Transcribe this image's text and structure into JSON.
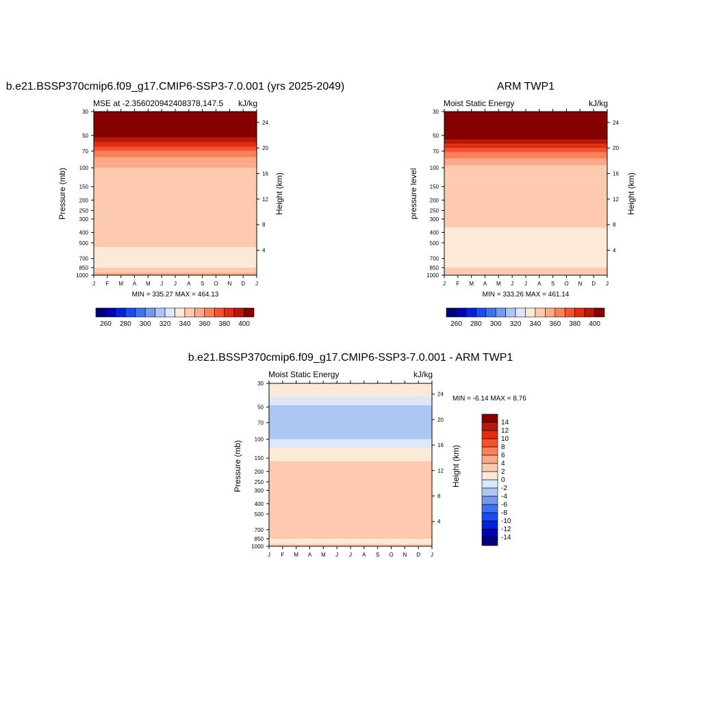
{
  "chart_data": [
    {
      "type": "heatmap",
      "title": "b.e21.BSSP370cmip6.f09_g17.CMIP6-SSP3-7.0.001 (yrs 2025-2049)",
      "left_string": "MSE at -2.356020942408378,147.5",
      "right_string": "kJ/kg",
      "ylabel": "Pressure (mb)",
      "ylabel_right": "Height (km)",
      "x_ticks": [
        "J",
        "F",
        "M",
        "A",
        "M",
        "J",
        "J",
        "A",
        "S",
        "O",
        "N",
        "D",
        "J"
      ],
      "y_ticks": [
        30,
        50,
        70,
        100,
        150,
        200,
        250,
        300,
        400,
        500,
        700,
        850,
        1000
      ],
      "height_ticks": [
        24,
        20,
        16,
        12,
        8,
        4
      ],
      "min_max_text": "MIN = 335.27  MAX = 464.13",
      "contour_levels": [
        250,
        260,
        270,
        280,
        290,
        300,
        310,
        320,
        330,
        340,
        350,
        360,
        370,
        380,
        390,
        400,
        410
      ],
      "colorbar_labels": [
        "260",
        "280",
        "300",
        "320",
        "340",
        "360",
        "380",
        "400"
      ],
      "colorbar_colors": [
        "#00007f",
        "#0000b4",
        "#0022dc",
        "#1a4cf5",
        "#3d72f2",
        "#7499ee",
        "#adc7f4",
        "#dce8fa",
        "#fde9d7",
        "#fdcab0",
        "#fca987",
        "#f98059",
        "#f5532f",
        "#e12d0f",
        "#b91808",
        "#860000"
      ],
      "stripes_pressure_boundaries": [
        30,
        52,
        58,
        64,
        70,
        80,
        92,
        100,
        150,
        550,
        850,
        950,
        1000
      ],
      "stripes_colors": [
        "#860000",
        "#b91808",
        "#e12d0f",
        "#f5532f",
        "#f98059",
        "#fca987",
        "#fca987",
        "#fdcab0",
        "#fdcab0",
        "#fde9d7",
        "#fdcab0",
        "#fca987"
      ]
    },
    {
      "type": "heatmap",
      "title": "ARM TWP1",
      "left_string": "Moist Static Energy",
      "right_string": "kJ/kg",
      "ylabel": "pressure level",
      "ylabel_right": "Height (km)",
      "x_ticks": [
        "J",
        "F",
        "M",
        "A",
        "M",
        "J",
        "J",
        "A",
        "S",
        "O",
        "N",
        "D",
        "J"
      ],
      "y_ticks": [
        30,
        50,
        70,
        100,
        150,
        200,
        250,
        300,
        400,
        500,
        700,
        850,
        1000
      ],
      "height_ticks": [
        24,
        20,
        16,
        12,
        8,
        4
      ],
      "min_max_text": "MIN = 333.26  MAX = 461.14",
      "colorbar_labels": [
        "260",
        "280",
        "300",
        "320",
        "340",
        "360",
        "380",
        "400"
      ],
      "colorbar_colors": [
        "#00007f",
        "#0000b4",
        "#0022dc",
        "#1a4cf5",
        "#3d72f2",
        "#7499ee",
        "#adc7f4",
        "#dce8fa",
        "#fde9d7",
        "#fdcab0",
        "#fca987",
        "#f98059",
        "#f5532f",
        "#e12d0f",
        "#b91808",
        "#860000"
      ],
      "stripes_pressure_boundaries": [
        30,
        55,
        60,
        66,
        72,
        82,
        95,
        130,
        360,
        850,
        1000
      ],
      "stripes_colors": [
        "#860000",
        "#b91808",
        "#e12d0f",
        "#f5532f",
        "#f98059",
        "#fca987",
        "#fdcab0",
        "#fdcab0",
        "#fde9d7",
        "#fdcab0"
      ]
    },
    {
      "type": "heatmap",
      "title": "b.e21.BSSP370cmip6.f09_g17.CMIP6-SSP3-7.0.001 - ARM TWP1",
      "left_string": "Moist Static Energy",
      "right_string": "kJ/kg",
      "ylabel": "Pressure (mb)",
      "ylabel_right": "Height (km)",
      "x_ticks": [
        "J",
        "F",
        "M",
        "A",
        "M",
        "J",
        "J",
        "A",
        "S",
        "O",
        "N",
        "D",
        "J"
      ],
      "y_ticks": [
        30,
        50,
        70,
        100,
        150,
        200,
        250,
        300,
        400,
        500,
        700,
        850,
        1000
      ],
      "height_ticks": [
        24,
        20,
        16,
        12,
        8,
        4
      ],
      "min_max_text": "MIN =  -6.14 MAX =   8.76",
      "colorbar_labels": [
        "14",
        "12",
        "10",
        "8",
        "6",
        "4",
        "2",
        "0",
        "-2",
        "-4",
        "-6",
        "-8",
        "-10",
        "-12",
        "-14"
      ],
      "colorbar_colors": [
        "#860000",
        "#b91808",
        "#e12d0f",
        "#f5532f",
        "#f98059",
        "#fca987",
        "#fdcab0",
        "#fde9d7",
        "#dce8fa",
        "#adc7f4",
        "#7499ee",
        "#3d72f2",
        "#1a4cf5",
        "#0022dc",
        "#0000b4",
        "#00007f"
      ],
      "stripes_pressure_boundaries": [
        30,
        40,
        48,
        100,
        120,
        160,
        850,
        950,
        1000
      ],
      "stripes_colors": [
        "#fde9d7",
        "#dce8fa",
        "#adc7f4",
        "#dce8fa",
        "#fde9d7",
        "#fdcab0",
        "#fde9d7",
        "#fdcab0"
      ]
    }
  ]
}
